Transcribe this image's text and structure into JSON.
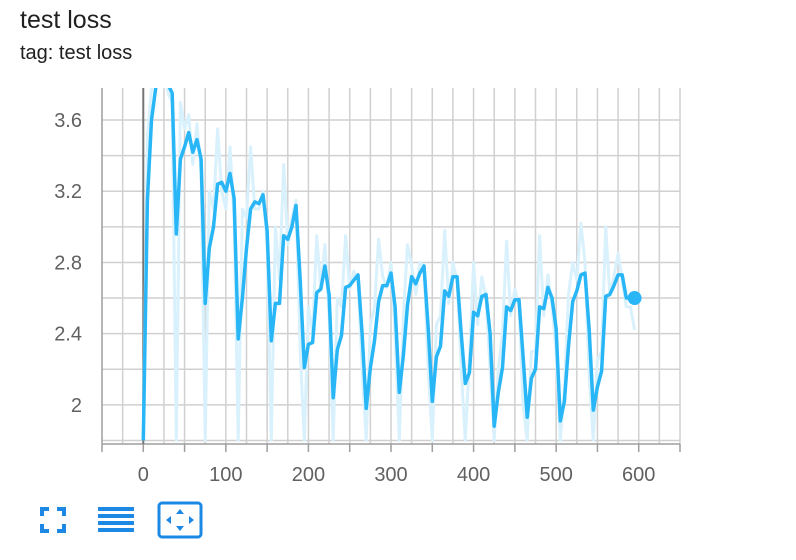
{
  "card": {
    "title": "test loss",
    "tag": "tag: test loss"
  },
  "toolbar": {
    "buttons": [
      {
        "name": "fullscreen-icon"
      },
      {
        "name": "toggle-log-scale-icon"
      },
      {
        "name": "fit-domain-icon"
      }
    ]
  },
  "colors": {
    "smoothed": "#29b6f6",
    "raw": "#d9f1fc",
    "grid": "#d0d0d0",
    "axis": "#9e9e9e",
    "zero_line": "#757575"
  },
  "chart_data": {
    "type": "line",
    "title": "test loss",
    "xlabel": "",
    "ylabel": "",
    "xlim": [
      -50,
      650
    ],
    "ylim": [
      1.78,
      3.78
    ],
    "x_ticks": [
      0,
      100,
      200,
      300,
      400,
      500,
      600
    ],
    "y_ticks": [
      2,
      2.4,
      2.8,
      3.2,
      3.6
    ],
    "y_tick_labels": [
      "2",
      "2.4",
      "2.8",
      "3.2",
      "3.6"
    ],
    "grid": true,
    "series": [
      {
        "role": "smoothed",
        "x": [
          0,
          5,
          10,
          15,
          20,
          25,
          30,
          35,
          40,
          45,
          50,
          55,
          60,
          65,
          70,
          75,
          80,
          85,
          90,
          95,
          100,
          105,
          110,
          115,
          120,
          125,
          130,
          135,
          140,
          145,
          150,
          155,
          160,
          165,
          170,
          175,
          180,
          185,
          190,
          195,
          200,
          205,
          210,
          215,
          220,
          225,
          230,
          235,
          240,
          245,
          250,
          255,
          260,
          265,
          270,
          275,
          280,
          285,
          290,
          295,
          300,
          305,
          310,
          315,
          320,
          325,
          330,
          335,
          340,
          345,
          350,
          355,
          360,
          365,
          370,
          375,
          380,
          385,
          390,
          395,
          400,
          405,
          410,
          415,
          420,
          425,
          430,
          435,
          440,
          445,
          450,
          455,
          460,
          465,
          470,
          475,
          480,
          485,
          490,
          495,
          500,
          505,
          510,
          515,
          520,
          525,
          530,
          535,
          540,
          545,
          550,
          555,
          560,
          565,
          570,
          575,
          580,
          585,
          590,
          595
        ],
        "y": [
          1.8,
          3.15,
          3.6,
          3.78,
          3.85,
          3.82,
          3.8,
          3.75,
          2.96,
          3.38,
          3.45,
          3.53,
          3.42,
          3.49,
          3.38,
          2.57,
          2.88,
          3.0,
          3.24,
          3.25,
          3.2,
          3.3,
          3.16,
          2.37,
          2.6,
          2.88,
          3.1,
          3.14,
          3.13,
          3.18,
          2.98,
          2.36,
          2.57,
          2.57,
          2.95,
          2.93,
          3.0,
          3.12,
          2.7,
          2.21,
          2.34,
          2.35,
          2.63,
          2.65,
          2.78,
          2.62,
          2.04,
          2.31,
          2.39,
          2.66,
          2.67,
          2.7,
          2.73,
          2.4,
          1.98,
          2.21,
          2.36,
          2.58,
          2.67,
          2.67,
          2.74,
          2.55,
          2.07,
          2.28,
          2.56,
          2.72,
          2.68,
          2.74,
          2.78,
          2.43,
          2.02,
          2.27,
          2.33,
          2.64,
          2.61,
          2.72,
          2.72,
          2.4,
          2.12,
          2.18,
          2.52,
          2.5,
          2.61,
          2.62,
          2.4,
          1.88,
          2.07,
          2.21,
          2.55,
          2.53,
          2.59,
          2.59,
          2.27,
          1.93,
          2.15,
          2.2,
          2.55,
          2.54,
          2.66,
          2.6,
          2.43,
          1.91,
          2.02,
          2.33,
          2.58,
          2.64,
          2.73,
          2.74,
          2.42,
          1.97,
          2.1,
          2.19,
          2.61,
          2.62,
          2.67,
          2.73,
          2.73,
          2.6,
          2.6,
          2.6
        ]
      },
      {
        "role": "raw",
        "x": [
          0,
          5,
          10,
          15,
          20,
          25,
          30,
          35,
          40,
          45,
          50,
          55,
          60,
          65,
          70,
          75,
          80,
          85,
          90,
          95,
          100,
          105,
          110,
          115,
          120,
          125,
          130,
          135,
          140,
          145,
          150,
          155,
          160,
          165,
          170,
          175,
          180,
          185,
          190,
          195,
          200,
          205,
          210,
          215,
          220,
          225,
          230,
          235,
          240,
          245,
          250,
          255,
          260,
          265,
          270,
          275,
          280,
          285,
          290,
          295,
          300,
          305,
          310,
          315,
          320,
          325,
          330,
          335,
          340,
          345,
          350,
          355,
          360,
          365,
          370,
          375,
          380,
          385,
          390,
          395,
          400,
          405,
          410,
          415,
          420,
          425,
          430,
          435,
          440,
          445,
          450,
          455,
          460,
          465,
          470,
          475,
          480,
          485,
          490,
          495,
          500,
          505,
          510,
          515,
          520,
          525,
          530,
          535,
          540,
          545,
          550,
          555,
          560,
          565,
          570,
          575,
          580,
          585,
          590,
          595
        ],
        "y": [
          1.8,
          3.5,
          3.78,
          3.9,
          3.95,
          3.9,
          3.75,
          3.7,
          1.8,
          3.7,
          3.55,
          3.63,
          3.35,
          3.58,
          3.3,
          1.8,
          3.2,
          3.1,
          3.55,
          3.2,
          3.1,
          3.45,
          3.05,
          1.8,
          3.1,
          3.05,
          3.45,
          3.1,
          3.1,
          3.2,
          2.9,
          1.8,
          3.0,
          2.7,
          3.35,
          2.9,
          3.05,
          3.15,
          2.3,
          1.8,
          2.55,
          2.4,
          2.95,
          2.65,
          2.9,
          2.5,
          1.8,
          2.6,
          2.55,
          2.95,
          2.65,
          2.75,
          2.7,
          2.2,
          1.8,
          2.45,
          2.55,
          2.93,
          2.72,
          2.66,
          2.8,
          2.4,
          1.8,
          2.5,
          2.9,
          2.78,
          2.62,
          2.8,
          2.78,
          2.2,
          1.8,
          2.45,
          2.5,
          2.98,
          2.57,
          2.8,
          2.7,
          2.2,
          1.8,
          2.25,
          2.8,
          2.45,
          2.72,
          2.6,
          2.2,
          1.8,
          2.2,
          2.4,
          2.92,
          2.5,
          2.65,
          2.55,
          2.0,
          1.8,
          2.3,
          2.3,
          2.95,
          2.5,
          2.73,
          2.55,
          2.3,
          1.8,
          2.1,
          2.62,
          2.8,
          2.7,
          3.02,
          2.8,
          2.15,
          1.8,
          2.25,
          2.3,
          3.0,
          2.62,
          2.72,
          2.85,
          2.7,
          2.55,
          2.55,
          2.42
        ]
      }
    ]
  }
}
